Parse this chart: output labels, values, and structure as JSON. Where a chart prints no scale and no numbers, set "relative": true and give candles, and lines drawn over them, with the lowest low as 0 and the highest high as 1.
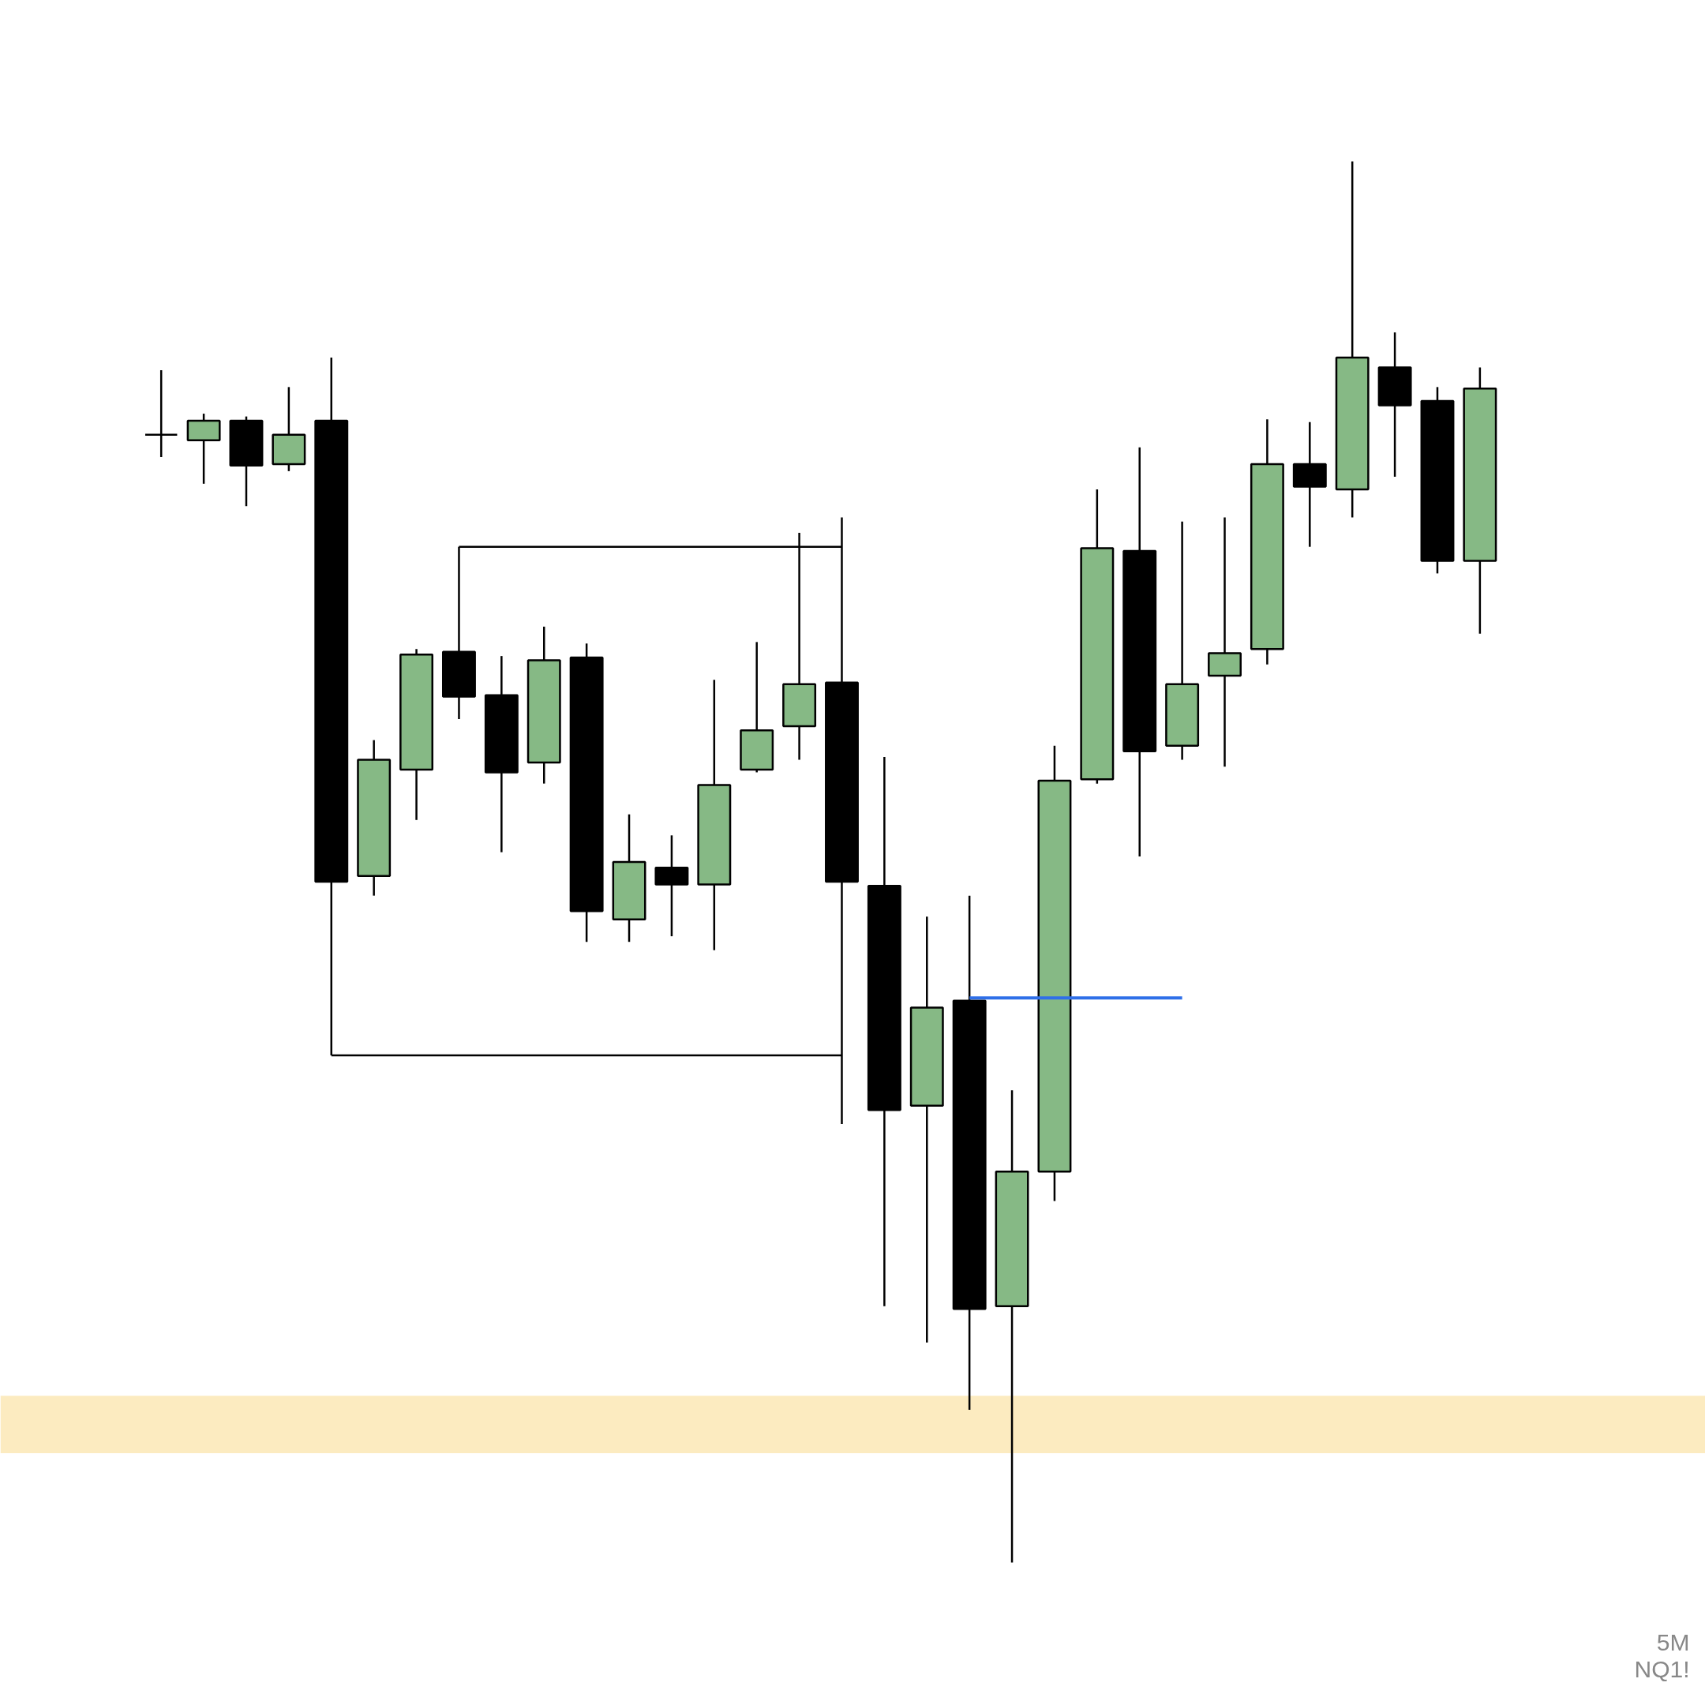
{
  "chart_data": {
    "type": "candlestick",
    "relative": true,
    "grid": false,
    "categories": [
      null,
      null,
      null,
      null,
      null,
      null,
      null,
      null,
      null,
      null,
      null,
      null,
      null,
      null,
      null,
      null,
      null,
      null,
      null,
      null,
      null,
      null,
      null,
      null,
      null,
      null,
      null,
      null,
      null,
      null,
      null,
      null
    ],
    "ohlc": [
      [
        0.805,
        0.851,
        0.789,
        0.805
      ],
      [
        0.801,
        0.82,
        0.77,
        0.815
      ],
      [
        0.815,
        0.818,
        0.754,
        0.783
      ],
      [
        0.784,
        0.839,
        0.779,
        0.805
      ],
      [
        0.815,
        0.86,
        0.486,
        0.486
      ],
      [
        0.49,
        0.587,
        0.476,
        0.573
      ],
      [
        0.566,
        0.652,
        0.53,
        0.648
      ],
      [
        0.65,
        0.65,
        0.602,
        0.618
      ],
      [
        0.619,
        0.647,
        0.507,
        0.564
      ],
      [
        0.571,
        0.668,
        0.556,
        0.644
      ],
      [
        0.646,
        0.656,
        0.443,
        0.465
      ],
      [
        0.459,
        0.534,
        0.443,
        0.5
      ],
      [
        0.496,
        0.519,
        0.447,
        0.484
      ],
      [
        0.484,
        0.63,
        0.437,
        0.555
      ],
      [
        0.566,
        0.657,
        0.564,
        0.594
      ],
      [
        0.597,
        0.735,
        0.573,
        0.627
      ],
      [
        0.628,
        0.746,
        0.313,
        0.486
      ],
      [
        0.483,
        0.575,
        0.183,
        0.323
      ],
      [
        0.326,
        0.461,
        0.157,
        0.396
      ],
      [
        0.401,
        0.476,
        0.109,
        0.181
      ],
      [
        0.183,
        0.337,
        0,
        0.279
      ],
      [
        0.279,
        0.583,
        0.258,
        0.558
      ],
      [
        0.559,
        0.766,
        0.556,
        0.724
      ],
      [
        0.722,
        0.796,
        0.504,
        0.579
      ],
      [
        0.583,
        0.743,
        0.573,
        0.627
      ],
      [
        0.633,
        0.746,
        0.568,
        0.649
      ],
      [
        0.652,
        0.816,
        0.641,
        0.784
      ],
      [
        0.784,
        0.814,
        0.725,
        0.768
      ],
      [
        0.766,
        1,
        0.746,
        0.86
      ],
      [
        0.853,
        0.878,
        0.775,
        0.826
      ],
      [
        0.829,
        0.839,
        0.706,
        0.715
      ],
      [
        0.715,
        0.853,
        0.663,
        0.838
      ]
    ],
    "colors": [
      "#000000",
      "#86b985",
      "#000000",
      "#86b985",
      "#000000",
      "#86b985",
      "#86b985",
      "#000000",
      "#000000",
      "#86b985",
      "#000000",
      "#86b985",
      "#000000",
      "#86b985",
      "#86b985",
      "#86b985",
      "#000000",
      "#000000",
      "#86b985",
      "#000000",
      "#86b985",
      "#86b985",
      "#86b985",
      "#000000",
      "#86b985",
      "#86b985",
      "#86b985",
      "#000000",
      "#86b985",
      "#000000",
      "#000000",
      "#86b985"
    ],
    "series": [
      {
        "type": "line",
        "color": "#2f6fe8",
        "values": [
          null,
          null,
          null,
          null,
          null,
          null,
          null,
          null,
          null,
          null,
          null,
          null,
          null,
          null,
          null,
          null,
          null,
          null,
          null,
          0.403,
          0.403,
          0.403,
          0.403,
          0.403,
          0.403,
          null,
          null,
          null,
          null,
          null,
          null,
          null
        ]
      },
      {
        "type": "line",
        "color": "#000000",
        "values": [
          null,
          null,
          null,
          null,
          null,
          null,
          null,
          0.725,
          0.725,
          0.725,
          0.725,
          0.725,
          0.725,
          0.725,
          0.725,
          0.725,
          0.725,
          null,
          null,
          null,
          null,
          null,
          null,
          null,
          null,
          null,
          null,
          null,
          null,
          null,
          null,
          null
        ],
        "errors": [
          null,
          null,
          null,
          null,
          null,
          null,
          null,
          [
            0.65,
            0.725
          ],
          null,
          null,
          null,
          null,
          null,
          null,
          null,
          null,
          null,
          null,
          null,
          null,
          null,
          null,
          null,
          null,
          null,
          null,
          null,
          null,
          null,
          null,
          null,
          null
        ]
      },
      {
        "type": "line",
        "color": "#000000",
        "values": [
          null,
          null,
          null,
          null,
          0.362,
          0.362,
          0.362,
          0.362,
          0.362,
          0.362,
          0.362,
          0.362,
          0.362,
          0.362,
          0.362,
          0.362,
          0.362,
          null,
          null,
          null,
          null,
          null,
          null,
          null,
          null,
          null,
          null,
          null,
          null,
          null,
          null,
          null
        ],
        "errors": [
          null,
          null,
          null,
          null,
          [
            0.362,
            0.486
          ],
          null,
          null,
          null,
          null,
          null,
          null,
          null,
          null,
          null,
          null,
          null,
          null,
          null,
          null,
          null,
          null,
          null,
          null,
          null,
          null,
          null,
          null,
          null,
          null,
          null,
          null,
          null
        ]
      }
    ],
    "bands": [
      {
        "axis": "y",
        "from": 0.078,
        "to": 0.119,
        "color": "#fcebc0"
      }
    ],
    "annotations": [
      "5M",
      "NQ1!"
    ]
  }
}
